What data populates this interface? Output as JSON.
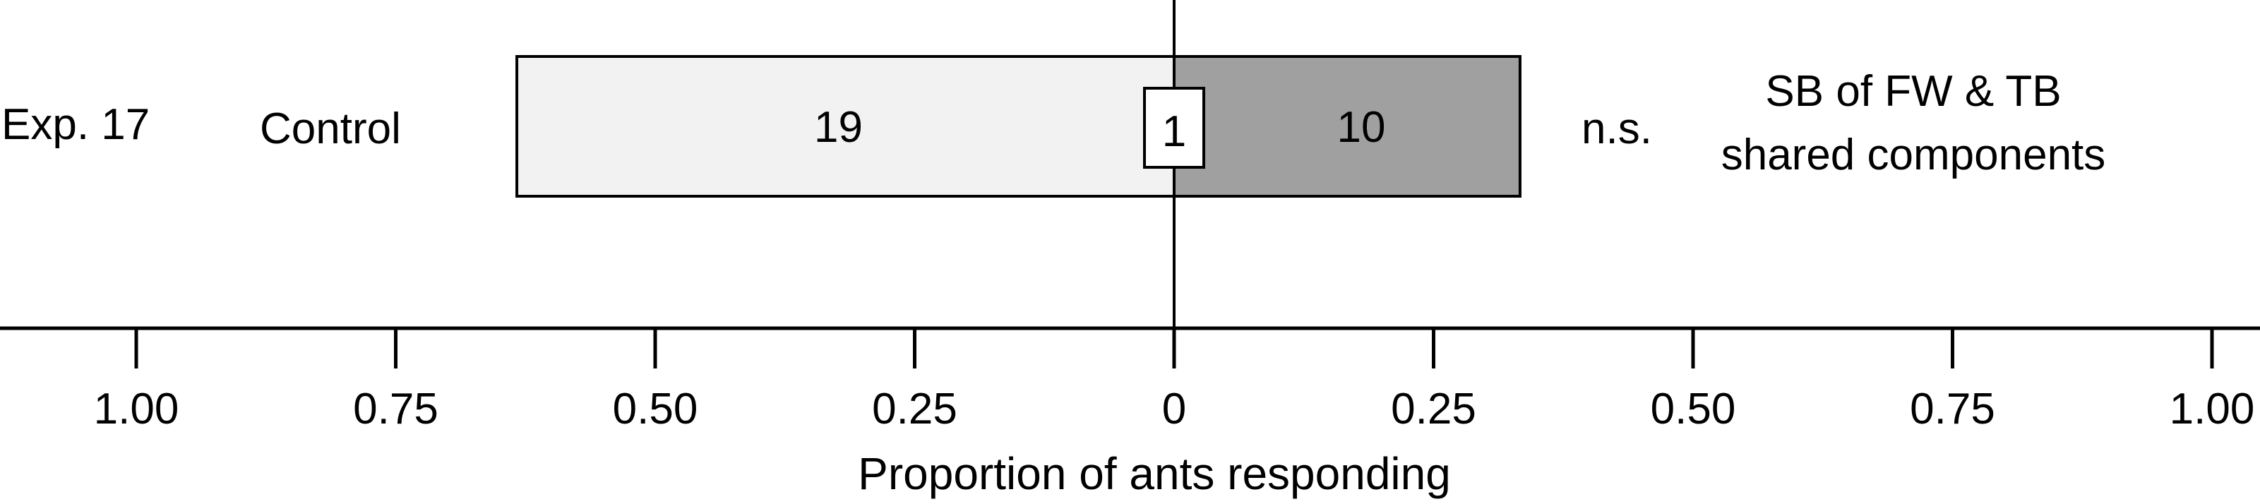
{
  "chart_data": {
    "type": "bar",
    "orientation": "horizontal-diverging",
    "xlabel": "Proportion of ants responding",
    "xlim": [
      -1,
      1
    ],
    "ticks": [
      -1,
      -0.75,
      -0.5,
      -0.25,
      0,
      0.25,
      0.5,
      0.75,
      1
    ],
    "tick_labels": [
      "1.00",
      "0.75",
      "0.50",
      "0.25",
      "0",
      "0.25",
      "0.50",
      "0.75",
      "1.00"
    ],
    "rows": [
      {
        "experiment": "Exp. 17",
        "left_label": "Control",
        "right_label_lines": [
          "SB of FW & TB",
          "shared components"
        ],
        "significance": "n.s.",
        "left": {
          "count": 19,
          "count_label": "19",
          "proportion": 0.6333,
          "color": "#f2f2f2"
        },
        "right": {
          "count": 10,
          "count_label": "10",
          "proportion": 0.3333,
          "color": "#a0a0a0"
        },
        "no_choice": {
          "count": 1,
          "count_label": "1"
        }
      }
    ]
  }
}
